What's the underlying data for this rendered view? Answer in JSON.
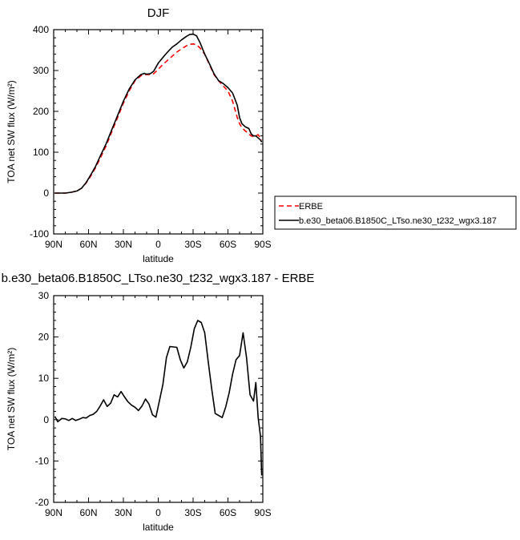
{
  "chart_data": [
    {
      "type": "line",
      "title": "DJF",
      "xlabel": "latitude",
      "ylabel": "TOA net SW flux (W/m²)",
      "xlim": [
        -90,
        90
      ],
      "ylim": [
        -100,
        400
      ],
      "xticks": [
        -90,
        -60,
        -30,
        0,
        30,
        60,
        90
      ],
      "xticklabels": [
        "90N",
        "60N",
        "30N",
        "0",
        "30S",
        "60S",
        "90S"
      ],
      "yticks": [
        -100,
        0,
        100,
        200,
        300,
        400
      ],
      "yticklabels": [
        "-100",
        "0",
        "100",
        "200",
        "300",
        "400"
      ],
      "legend": "right",
      "series": [
        {
          "name": "ERBE",
          "color": "#ff0000",
          "dashed": true,
          "x": [
            -89,
            -85,
            -80,
            -75,
            -70,
            -66,
            -62,
            -58,
            -54,
            -50,
            -45,
            -40,
            -35,
            -30,
            -25,
            -20,
            -15,
            -12,
            -10,
            -7,
            -4,
            0,
            4,
            8,
            12,
            16,
            20,
            24,
            27,
            30,
            33,
            36,
            40,
            44,
            48,
            52,
            56,
            60,
            64,
            68,
            70,
            72,
            75,
            78,
            80,
            82,
            84,
            86,
            88,
            89
          ],
          "y": [
            0,
            0,
            0,
            2,
            5,
            12,
            25,
            42,
            62,
            85,
            115,
            150,
            185,
            220,
            250,
            275,
            287,
            290,
            290,
            290,
            292,
            303,
            315,
            325,
            335,
            345,
            353,
            360,
            364,
            365,
            363,
            355,
            340,
            315,
            290,
            275,
            262,
            250,
            225,
            185,
            170,
            160,
            152,
            145,
            140,
            138,
            140,
            143,
            135,
            130
          ]
        },
        {
          "name": "b.e30_beta06.B1850C_LTso.ne30_t232_wgx3.187",
          "color": "#000000",
          "dashed": false,
          "x": [
            -89,
            -85,
            -80,
            -75,
            -70,
            -66,
            -62,
            -58,
            -54,
            -50,
            -45,
            -40,
            -35,
            -30,
            -25,
            -20,
            -15,
            -12,
            -10,
            -7,
            -4,
            0,
            4,
            8,
            12,
            16,
            20,
            24,
            27,
            30,
            33,
            36,
            40,
            44,
            48,
            52,
            56,
            60,
            64,
            68,
            70,
            72,
            75,
            78,
            80,
            82,
            84,
            86,
            88,
            89
          ],
          "y": [
            0,
            0,
            0,
            2,
            5,
            12,
            26,
            45,
            65,
            90,
            120,
            155,
            190,
            225,
            255,
            277,
            290,
            293,
            291,
            292,
            298,
            318,
            332,
            345,
            357,
            365,
            375,
            383,
            388,
            389,
            385,
            368,
            340,
            317,
            292,
            275,
            268,
            258,
            245,
            215,
            185,
            170,
            162,
            158,
            145,
            140,
            140,
            135,
            130,
            125
          ]
        }
      ]
    },
    {
      "type": "line",
      "title": "b.e30_beta06.B1850C_LTso.ne30_t232_wgx3.187 - ERBE",
      "xlabel": "latitude",
      "ylabel": "TOA net SW flux (W/m²)",
      "xlim": [
        -90,
        90
      ],
      "ylim": [
        -20,
        30
      ],
      "xticks": [
        -90,
        -60,
        -30,
        0,
        30,
        60,
        90
      ],
      "xticklabels": [
        "90N",
        "60N",
        "30N",
        "0",
        "30S",
        "60S",
        "90S"
      ],
      "yticks": [
        -20,
        -10,
        0,
        10,
        20,
        30
      ],
      "yticklabels": [
        "-20",
        "-10",
        "0",
        "10",
        "20",
        "30"
      ],
      "series": [
        {
          "color": "#000000",
          "x": [
            -89,
            -86.5,
            -83,
            -80,
            -77,
            -74,
            -71,
            -68,
            -65,
            -62,
            -59,
            -56,
            -53,
            -50,
            -47,
            -44,
            -41,
            -38,
            -35,
            -32,
            -29,
            -26,
            -23,
            -20,
            -17,
            -14,
            -11,
            -8,
            -5,
            -2,
            1,
            4,
            7,
            10,
            13,
            16,
            19,
            22,
            25,
            28,
            31,
            34,
            37,
            40,
            43,
            46,
            49,
            52,
            55,
            58,
            61,
            64,
            67,
            70,
            73,
            76,
            79,
            82,
            84,
            86,
            88,
            89
          ],
          "y": [
            0.8,
            -0.5,
            0.3,
            0.2,
            -0.2,
            0.3,
            -0.2,
            0.1,
            0.5,
            0.4,
            1.0,
            1.3,
            2.0,
            3.3,
            4.8,
            3.2,
            4.0,
            6.0,
            5.5,
            6.8,
            5.5,
            4.3,
            3.5,
            3.0,
            2.2,
            3.3,
            5.0,
            3.8,
            1.2,
            0.6,
            4.5,
            8.5,
            15.0,
            17.7,
            17.6,
            17.5,
            14.5,
            12.5,
            14.0,
            17.5,
            22.0,
            24.0,
            23.5,
            21.0,
            14.0,
            7.5,
            1.5,
            1.0,
            0.5,
            3.0,
            6.5,
            11.0,
            14.5,
            15.5,
            21.0,
            15.0,
            6.0,
            4.5,
            9.0,
            0.5,
            -4.0,
            -13.5
          ]
        }
      ]
    }
  ]
}
